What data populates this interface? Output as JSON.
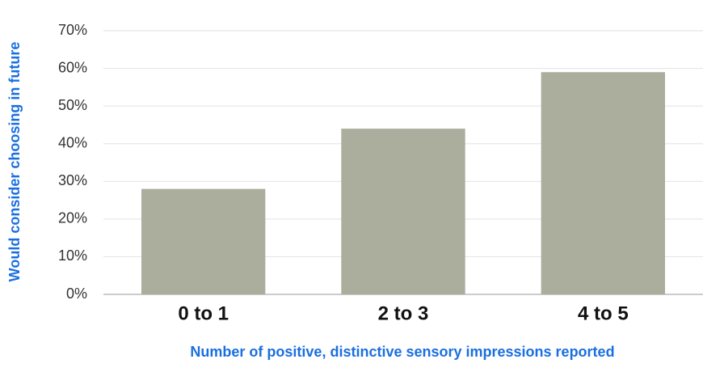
{
  "chart_data": {
    "type": "bar",
    "x_label": "Number of positive, distinctive sensory impressions reported",
    "y_label": "Would consider choosing in future",
    "categories": [
      "0 to 1",
      "2 to 3",
      "4 to 5"
    ],
    "values": [
      28,
      44,
      59
    ],
    "color": "#abad9d",
    "ylim": [
      0,
      70
    ],
    "yticks": [
      {
        "value": 0,
        "label": "0%"
      },
      {
        "value": 10,
        "label": "10%"
      },
      {
        "value": 20,
        "label": "20%"
      },
      {
        "value": 30,
        "label": "30%"
      },
      {
        "value": 40,
        "label": "40%"
      },
      {
        "value": 50,
        "label": "50%"
      },
      {
        "value": 60,
        "label": "60%"
      },
      {
        "value": 70,
        "label": "70%"
      }
    ],
    "grid": true
  }
}
